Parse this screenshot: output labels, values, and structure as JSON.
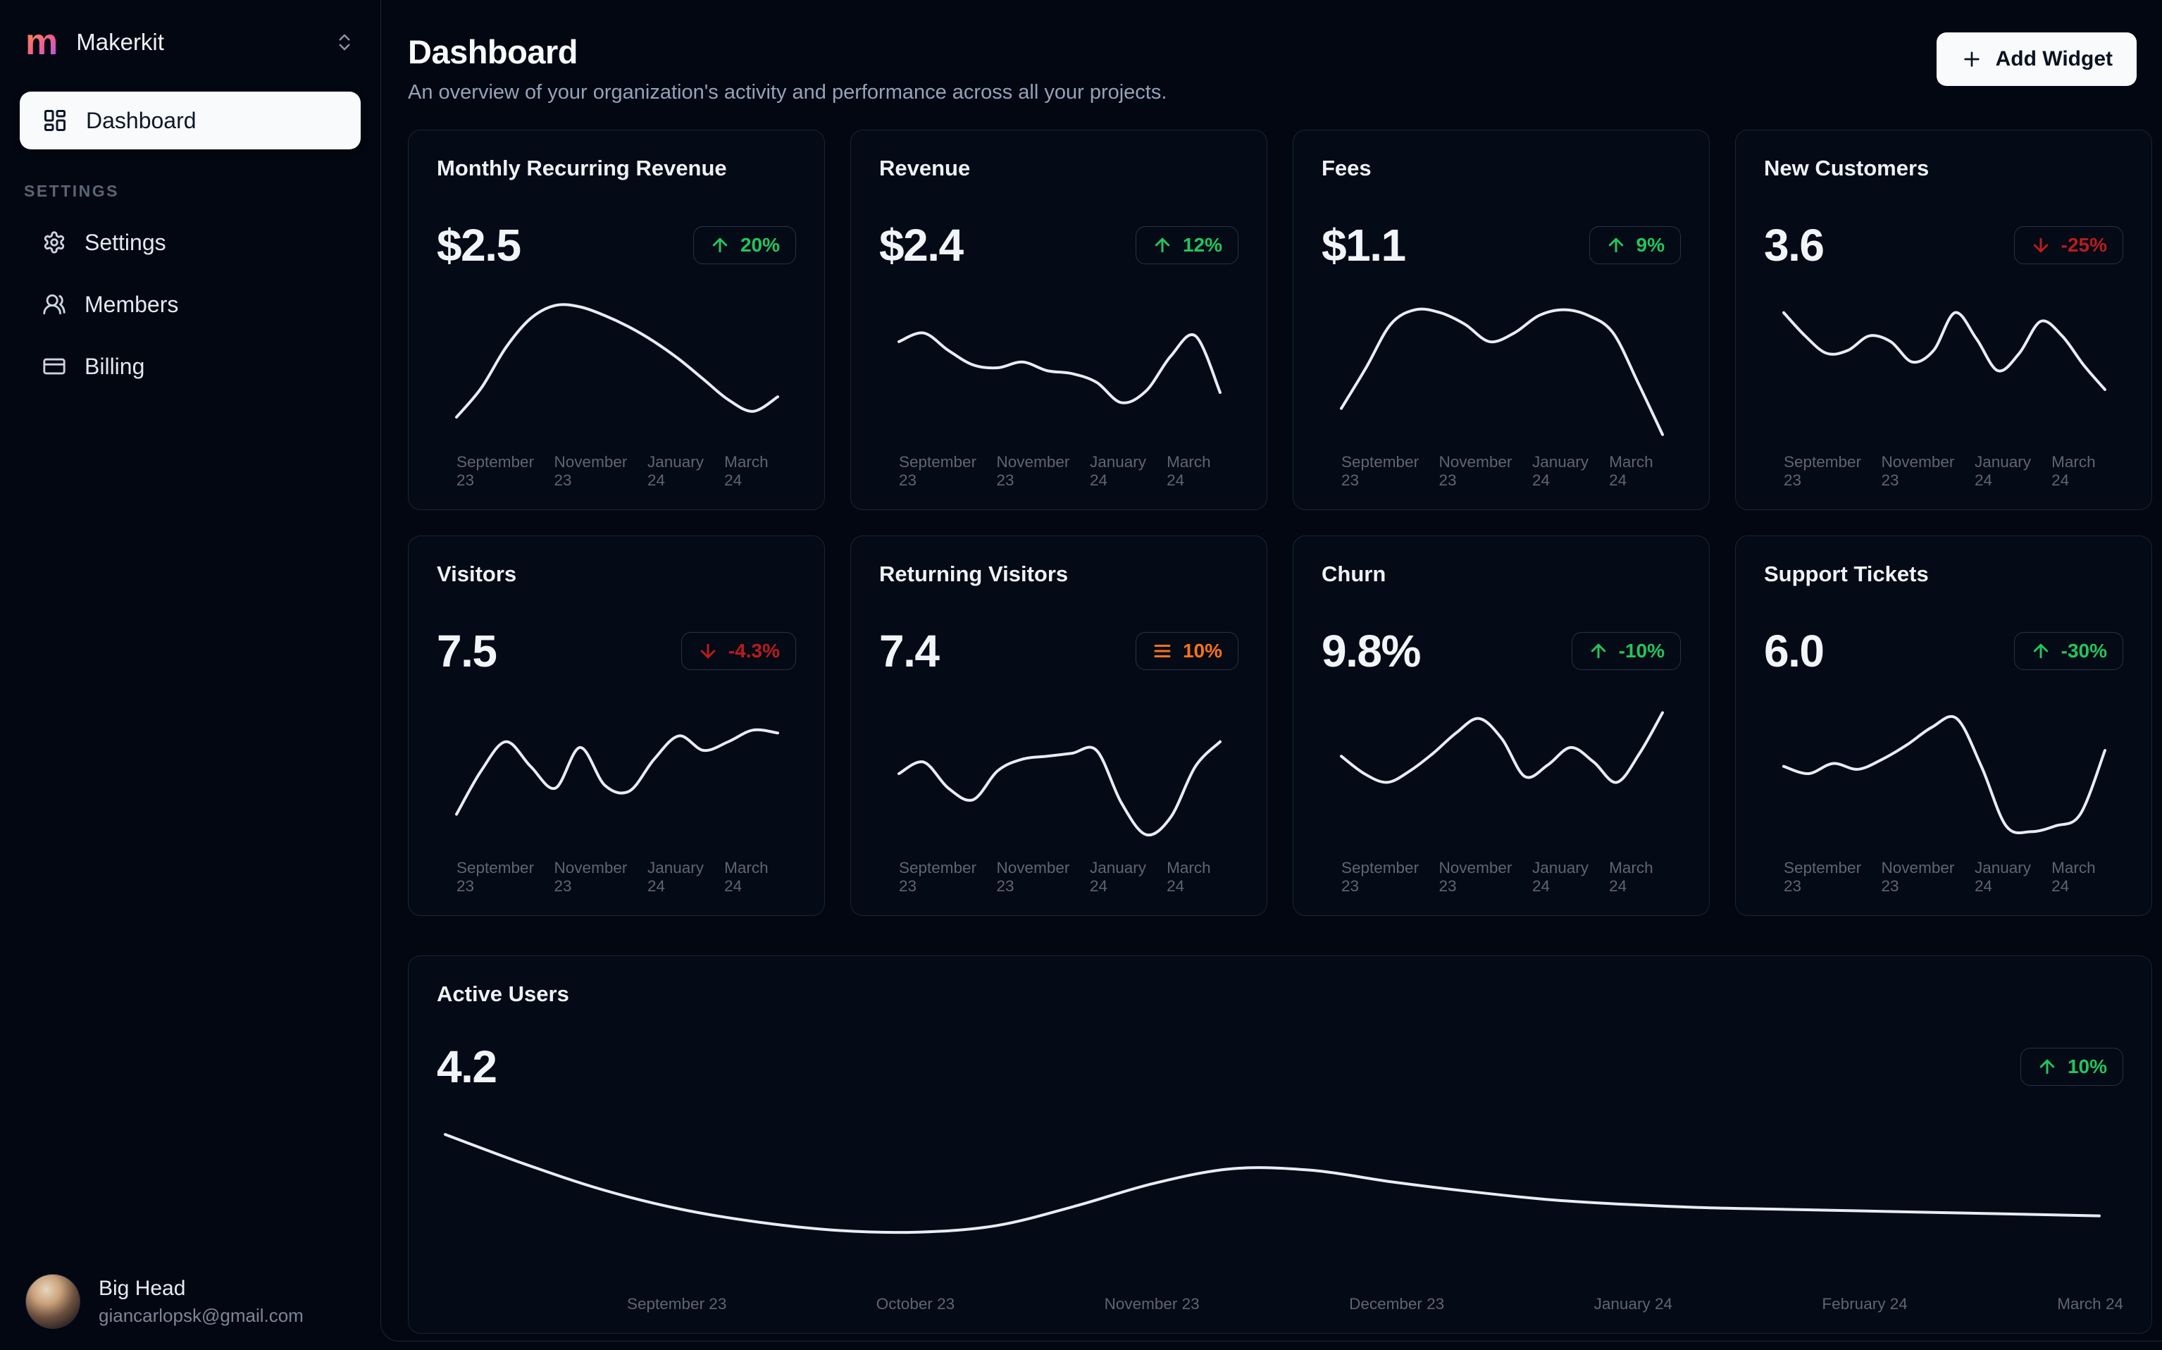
{
  "colors": {
    "background": "#030712",
    "panel_border": "#1e2636",
    "card_border": "#1b2433",
    "card_bg": "#040a16",
    "green": "#22c55e",
    "red": "#b91c1c",
    "orange": "#f97316",
    "line": "#e8edf3",
    "text_primary": "#f8fafc",
    "text_muted": "#94a3b8",
    "tick": "#5d6673"
  },
  "sidebar": {
    "brand": {
      "logo_letter": "m",
      "name": "Makerkit"
    },
    "primary_nav": [
      {
        "label": "Dashboard",
        "active": true
      }
    ],
    "section_label": "SETTINGS",
    "secondary_nav": [
      {
        "label": "Settings"
      },
      {
        "label": "Members"
      },
      {
        "label": "Billing"
      }
    ],
    "user": {
      "name": "Big Head",
      "email": "giancarlopsk@gmail.com"
    }
  },
  "header": {
    "title": "Dashboard",
    "subtitle": "An overview of your organization's activity and performance across all your projects.",
    "add_widget_label": "Add Widget"
  },
  "spark_ticks": [
    "September 23",
    "November 23",
    "January 24",
    "March 24"
  ],
  "cards": [
    {
      "title": "Monthly Recurring Revenue",
      "value": "$2.5",
      "badge": {
        "trend": "up",
        "label": "20%",
        "tone": "green"
      },
      "spark": [
        16,
        36,
        64,
        84,
        93,
        92,
        86,
        78,
        68,
        56,
        42,
        28,
        20,
        30
      ]
    },
    {
      "title": "Revenue",
      "value": "$2.4",
      "badge": {
        "trend": "up",
        "label": "12%",
        "tone": "green"
      },
      "spark": [
        68,
        74,
        62,
        52,
        50,
        54,
        48,
        46,
        40,
        26,
        34,
        58,
        72,
        33
      ]
    },
    {
      "title": "Fees",
      "value": "$1.1",
      "badge": {
        "trend": "up",
        "label": "9%",
        "tone": "green"
      },
      "spark": [
        22,
        50,
        80,
        90,
        88,
        80,
        68,
        74,
        86,
        90,
        86,
        74,
        40,
        4
      ]
    },
    {
      "title": "New Customers",
      "value": "3.6",
      "badge": {
        "trend": "down",
        "label": "-25%",
        "tone": "red"
      },
      "spark": [
        88,
        72,
        60,
        62,
        72,
        68,
        54,
        62,
        88,
        70,
        48,
        60,
        82,
        72,
        52,
        35
      ]
    },
    {
      "title": "Visitors",
      "value": "7.5",
      "badge": {
        "trend": "down",
        "label": "-4.3%",
        "tone": "red"
      },
      "spark": [
        22,
        52,
        72,
        55,
        40,
        68,
        42,
        38,
        60,
        76,
        66,
        72,
        80,
        78
      ]
    },
    {
      "title": "Returning Visitors",
      "value": "7.4",
      "badge": {
        "trend": "flat",
        "label": "10%",
        "tone": "orange"
      },
      "spark": [
        50,
        58,
        40,
        32,
        52,
        60,
        62,
        64,
        66,
        30,
        8,
        20,
        55,
        72
      ]
    },
    {
      "title": "Churn",
      "value": "9.8%",
      "badge": {
        "trend": "up",
        "label": "-10%",
        "tone": "green"
      },
      "spark": [
        62,
        50,
        44,
        52,
        64,
        78,
        88,
        74,
        48,
        56,
        68,
        58,
        44,
        64,
        92
      ]
    },
    {
      "title": "Support Tickets",
      "value": "6.0",
      "badge": {
        "trend": "up",
        "label": "-30%",
        "tone": "green"
      },
      "spark": [
        55,
        50,
        57,
        53,
        60,
        70,
        82,
        88,
        55,
        14,
        10,
        14,
        22,
        66
      ]
    }
  ],
  "active_users": {
    "title": "Active Users",
    "value": "4.2",
    "badge": {
      "trend": "up",
      "label": "10%",
      "tone": "green"
    },
    "ticks": [
      "September 23",
      "October 23",
      "November 23",
      "December 23",
      "January 24",
      "February 24",
      "March 24"
    ],
    "spark": [
      90,
      72,
      56,
      44,
      36,
      31,
      30,
      34,
      46,
      60,
      69,
      68,
      61,
      55,
      50,
      47,
      45,
      44,
      43,
      42,
      41,
      40
    ]
  }
}
